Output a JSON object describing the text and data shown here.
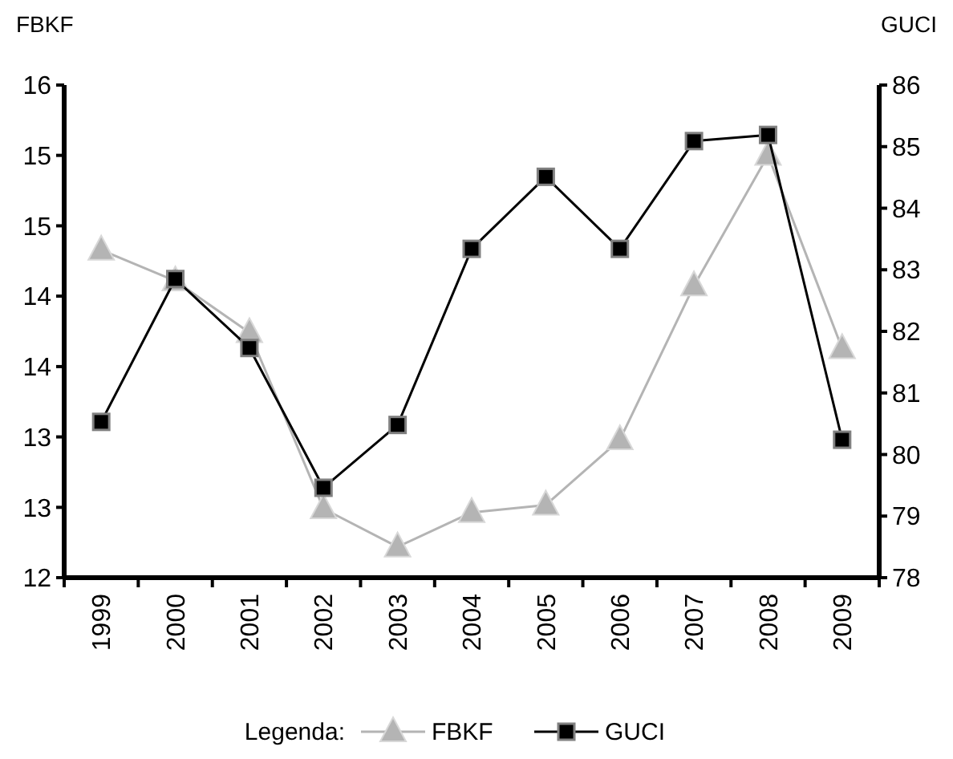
{
  "chart_data": {
    "type": "line",
    "ylabel": "FBKF",
    "y2label": "GUCI",
    "legend_title": "Legenda:",
    "legend": "bottom",
    "grid": false,
    "categories": [
      "1999",
      "2000",
      "2001",
      "2002",
      "2003",
      "2004",
      "2005",
      "2006",
      "2007",
      "2008",
      "2009"
    ],
    "ylim": [
      12,
      16
    ],
    "yticks": [
      {
        "value": 12,
        "label": "12"
      },
      {
        "value": 12.571,
        "label": "13"
      },
      {
        "value": 13.143,
        "label": "13"
      },
      {
        "value": 13.714,
        "label": "14"
      },
      {
        "value": 14.286,
        "label": "14"
      },
      {
        "value": 14.857,
        "label": "15"
      },
      {
        "value": 15.429,
        "label": "15"
      },
      {
        "value": 16,
        "label": "16"
      }
    ],
    "y2lim": [
      78,
      86
    ],
    "y2ticks": [
      78,
      79,
      80,
      81,
      82,
      83,
      84,
      85,
      86
    ],
    "series": [
      {
        "name": "FBKF",
        "color": "#b4b4b4",
        "marker": "triangle",
        "values": [
          14.66,
          14.41,
          13.99,
          12.56,
          12.25,
          12.53,
          12.59,
          13.12,
          14.37,
          15.43,
          13.86
        ]
      },
      {
        "name": "GUCI",
        "color": "#000000",
        "marker": "square",
        "axis": "y2",
        "values": [
          80.53,
          82.85,
          81.73,
          79.46,
          80.48,
          83.34,
          84.51,
          83.34,
          85.09,
          85.19,
          80.24
        ]
      }
    ]
  }
}
